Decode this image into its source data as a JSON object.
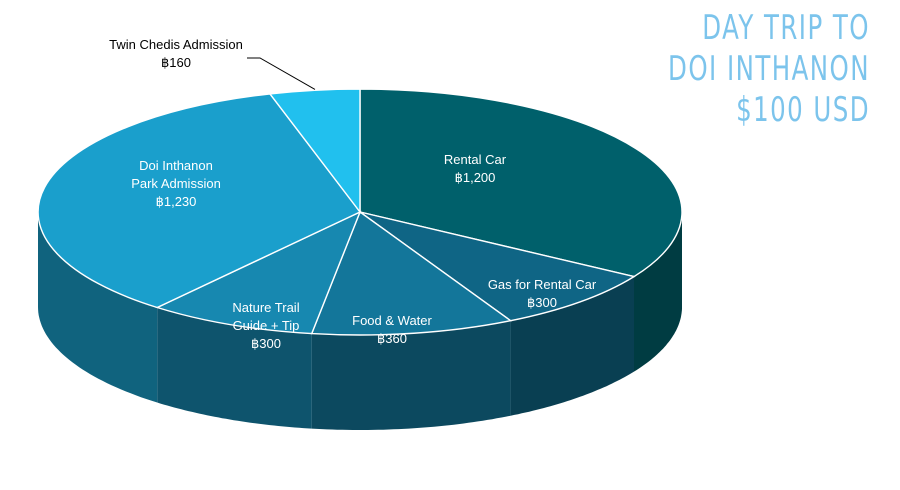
{
  "title_lines": [
    "DAY TRIP TO",
    "DOI INTHANON",
    "$100 USD"
  ],
  "chart_data": {
    "type": "pie",
    "title": "DAY TRIP TO DOI INTHANON $100 USD",
    "slices": [
      {
        "label": [
          "Rental Car"
        ],
        "value_label": "฿1,200",
        "value": 1200,
        "color": "#00606b"
      },
      {
        "label": [
          "Gas for Rental Car"
        ],
        "value_label": "฿300",
        "value": 300,
        "color": "#0f6585"
      },
      {
        "label": [
          "Food & Water"
        ],
        "value_label": "฿360",
        "value": 360,
        "color": "#13769a"
      },
      {
        "label": [
          "Nature Trail",
          "Guide + Tip"
        ],
        "value_label": "฿300",
        "value": 300,
        "color": "#1788b0"
      },
      {
        "label": [
          "Doi Inthanon",
          "Park Admission"
        ],
        "value_label": "฿1,230",
        "value": 1230,
        "color": "#1a9fcc"
      },
      {
        "label": [
          "Twin Chedis Admission"
        ],
        "value_label": "฿160",
        "value": 160,
        "color": "#21c0ee"
      }
    ]
  }
}
